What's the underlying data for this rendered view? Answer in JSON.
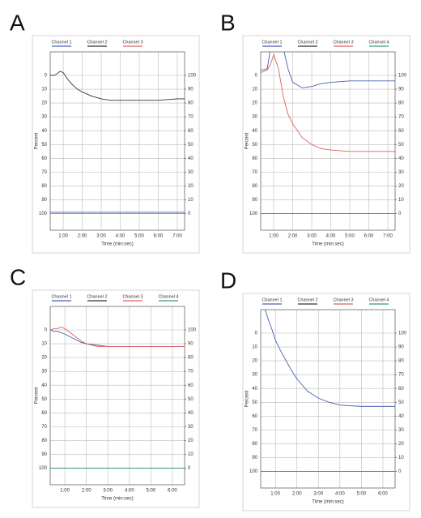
{
  "chart_data": [
    {
      "type": "line",
      "label": "A",
      "ylabel": "Percent",
      "xlabel": "Time (min:sec)",
      "xlim": [
        19,
        443
      ],
      "ylim": [
        112,
        -17
      ],
      "y2lim": [
        -12,
        117
      ],
      "grid": true,
      "xticks": [
        {
          "value": 60,
          "label": "1:00"
        },
        {
          "value": 120,
          "label": "2:00"
        },
        {
          "value": 180,
          "label": "3:00"
        },
        {
          "value": 240,
          "label": "4:00"
        },
        {
          "value": 300,
          "label": "5:00"
        },
        {
          "value": 360,
          "label": "6:00"
        },
        {
          "value": 420,
          "label": "7:00"
        }
      ],
      "yticks": [
        0,
        10,
        20,
        30,
        40,
        50,
        60,
        70,
        80,
        90,
        100
      ],
      "y2ticks": [
        100,
        90,
        80,
        70,
        60,
        50,
        40,
        30,
        20,
        10,
        0
      ],
      "x": [
        19,
        30,
        40,
        50,
        60,
        75,
        90,
        105,
        120,
        150,
        180,
        210,
        240,
        300,
        360,
        420,
        443
      ],
      "series": [
        {
          "name": "Channel 1",
          "color": "#4a5fb0",
          "values": [
            99,
            99,
            99,
            99,
            99,
            99,
            99,
            99,
            99,
            99,
            99,
            99,
            99,
            99,
            99,
            99,
            99
          ]
        },
        {
          "name": "Channel 2",
          "color": "#333333",
          "values": [
            0,
            0,
            -1,
            -3,
            -2,
            3,
            7,
            10,
            12,
            15,
            17,
            18,
            18,
            18,
            18,
            17,
            17
          ]
        },
        {
          "name": "Channel 3",
          "color": "#e06060",
          "values": [
            100,
            100,
            100,
            100,
            100,
            100,
            100,
            100,
            100,
            100,
            100,
            100,
            100,
            100,
            100,
            100,
            100
          ]
        }
      ]
    },
    {
      "type": "line",
      "label": "B",
      "ylabel": "Percent",
      "xlabel": "Time (min:sec)",
      "xlim": [
        19,
        443
      ],
      "ylim": [
        112,
        -17
      ],
      "y2lim": [
        -12,
        117
      ],
      "grid": true,
      "xticks": [
        {
          "value": 60,
          "label": "1:00"
        },
        {
          "value": 120,
          "label": "2:00"
        },
        {
          "value": 180,
          "label": "3:00"
        },
        {
          "value": 240,
          "label": "4:00"
        },
        {
          "value": 300,
          "label": "5:00"
        },
        {
          "value": 360,
          "label": "6:00"
        },
        {
          "value": 420,
          "label": "7:00"
        }
      ],
      "yticks": [
        0,
        10,
        20,
        30,
        40,
        50,
        60,
        70,
        80,
        90,
        100
      ],
      "y2ticks": [
        100,
        90,
        80,
        70,
        60,
        50,
        40,
        30,
        20,
        10,
        0
      ],
      "x": [
        19,
        30,
        40,
        50,
        60,
        75,
        90,
        105,
        120,
        150,
        180,
        210,
        240,
        300,
        360,
        420,
        443
      ],
      "series": [
        {
          "name": "Channel 1",
          "color": "#4a5fb0",
          "values": [
            -4,
            -4,
            -5,
            -20,
            -25,
            -25,
            -20,
            -5,
            5,
            9,
            8,
            6,
            5,
            4,
            4,
            4,
            4
          ]
        },
        {
          "name": "Channel 2",
          "color": "#333333",
          "values": [
            100,
            100,
            100,
            100,
            100,
            100,
            100,
            100,
            100,
            100,
            100,
            100,
            100,
            100,
            100,
            100,
            100
          ]
        },
        {
          "name": "Channel 3",
          "color": "#e06060",
          "values": [
            -2,
            -3,
            -4,
            -8,
            -15,
            -5,
            15,
            28,
            35,
            45,
            50,
            53,
            54,
            55,
            55,
            55,
            55
          ]
        },
        {
          "name": "Channel 4",
          "color": "#3a9a6a",
          "values": [
            100,
            100,
            100,
            100,
            100,
            100,
            100,
            100,
            100,
            100,
            100,
            100,
            100,
            100,
            100,
            100,
            100
          ]
        }
      ]
    },
    {
      "type": "line",
      "label": "C",
      "ylabel": "Percent",
      "xlabel": "Time (min:sec)",
      "xlim": [
        19,
        394
      ],
      "ylim": [
        112,
        -17
      ],
      "y2lim": [
        -12,
        117
      ],
      "grid": true,
      "xticks": [
        {
          "value": 60,
          "label": "1:00"
        },
        {
          "value": 120,
          "label": "2:00"
        },
        {
          "value": 180,
          "label": "3:00"
        },
        {
          "value": 240,
          "label": "4:00"
        },
        {
          "value": 300,
          "label": "5:00"
        },
        {
          "value": 360,
          "label": "6:00"
        }
      ],
      "yticks": [
        0,
        10,
        20,
        30,
        40,
        50,
        60,
        70,
        80,
        90,
        100
      ],
      "y2ticks": [
        100,
        90,
        80,
        70,
        60,
        50,
        40,
        30,
        20,
        10,
        0
      ],
      "x": [
        19,
        30,
        40,
        50,
        60,
        75,
        90,
        105,
        120,
        150,
        180,
        210,
        240,
        300,
        360,
        394
      ],
      "series": [
        {
          "name": "Channel 1",
          "color": "#4a5fb0",
          "values": [
            0,
            1,
            1,
            2,
            3,
            5,
            7,
            9,
            10,
            11,
            12,
            12,
            12,
            12,
            12,
            12
          ]
        },
        {
          "name": "Channel 2",
          "color": "#333333",
          "values": [
            100,
            100,
            100,
            100,
            100,
            100,
            100,
            100,
            100,
            100,
            100,
            100,
            100,
            100,
            100,
            100
          ]
        },
        {
          "name": "Channel 3",
          "color": "#e06060",
          "values": [
            0,
            -1,
            -1,
            -2,
            -1,
            2,
            5,
            8,
            10,
            12,
            12,
            12,
            12,
            12,
            12,
            12
          ]
        },
        {
          "name": "Channel 4",
          "color": "#3a9a6a",
          "values": [
            100,
            100,
            100,
            100,
            100,
            100,
            100,
            100,
            100,
            100,
            100,
            100,
            100,
            100,
            100,
            100
          ]
        }
      ]
    },
    {
      "type": "line",
      "label": "D",
      "ylabel": "Percent",
      "xlabel": "Time (min:sec)",
      "xlim": [
        19,
        394
      ],
      "ylim": [
        112,
        -17
      ],
      "y2lim": [
        -12,
        117
      ],
      "grid": true,
      "xticks": [
        {
          "value": 60,
          "label": "1:00"
        },
        {
          "value": 120,
          "label": "2:00"
        },
        {
          "value": 180,
          "label": "3:00"
        },
        {
          "value": 240,
          "label": "4:00"
        },
        {
          "value": 300,
          "label": "5:00"
        },
        {
          "value": 360,
          "label": "6:00"
        }
      ],
      "yticks": [
        0,
        10,
        20,
        30,
        40,
        50,
        60,
        70,
        80,
        90,
        100
      ],
      "y2ticks": [
        100,
        90,
        80,
        70,
        60,
        50,
        40,
        30,
        20,
        10,
        0
      ],
      "x": [
        19,
        30,
        40,
        50,
        60,
        75,
        90,
        105,
        120,
        150,
        180,
        210,
        240,
        300,
        360,
        394
      ],
      "series": [
        {
          "name": "Channel 1",
          "color": "#4a5fb0",
          "values": [
            -20,
            -18,
            -10,
            -3,
            5,
            13,
            20,
            27,
            33,
            42,
            47,
            50,
            52,
            53,
            53,
            53
          ]
        },
        {
          "name": "Channel 2",
          "color": "#333333",
          "values": [
            100,
            100,
            100,
            100,
            100,
            100,
            100,
            100,
            100,
            100,
            100,
            100,
            100,
            100,
            100,
            100
          ]
        },
        {
          "name": "Channel 3",
          "color": "#e06060",
          "values": [
            100,
            100,
            100,
            100,
            100,
            100,
            100,
            100,
            100,
            100,
            100,
            100,
            100,
            100,
            100,
            100
          ]
        },
        {
          "name": "Channel 4",
          "color": "#3a9a6a",
          "values": [
            100,
            100,
            100,
            100,
            100,
            100,
            100,
            100,
            100,
            100,
            100,
            100,
            100,
            100,
            100,
            100
          ]
        }
      ]
    }
  ]
}
